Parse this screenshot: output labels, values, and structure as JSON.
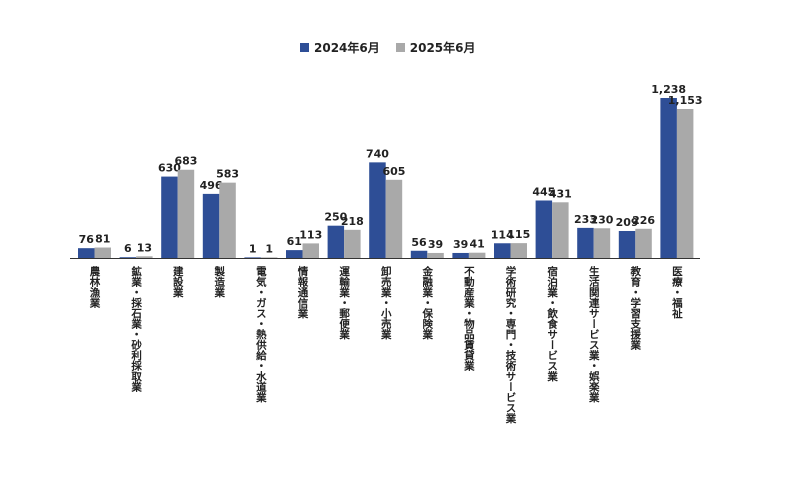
{
  "chart_data": {
    "type": "bar",
    "categories": [
      "農林漁業",
      "鉱業・採石業・砂利採取業",
      "建設業",
      "製造業",
      "電気・ガス・熱供給・水道業",
      "情報通信業",
      "運輸業・郵便業",
      "卸売業・小売業",
      "金融業・保険業",
      "不動産業・物品賃貸業",
      "学術研究・専門・技術サービス業",
      "宿泊業・飲食サービス業",
      "生活関連サービス業・娯楽業",
      "教育・学習支援業",
      "医療・福祉"
    ],
    "series": [
      {
        "name": "2024年6月",
        "color": "#2e4e96",
        "values": [
          76,
          6,
          630,
          496,
          1,
          61,
          250,
          740,
          56,
          39,
          114,
          445,
          233,
          209,
          1238
        ],
        "labels": [
          "76",
          "6",
          "630",
          "496",
          "1",
          "61",
          "250",
          "740",
          "56",
          "39",
          "114",
          "445",
          "233",
          "209",
          "1,238"
        ]
      },
      {
        "name": "2025年6月",
        "color": "#a9a9a9",
        "values": [
          81,
          13,
          683,
          583,
          1,
          113,
          218,
          605,
          39,
          41,
          115,
          431,
          230,
          226,
          1153
        ],
        "labels": [
          "81",
          "13",
          "683",
          "583",
          "1",
          "113",
          "218",
          "605",
          "39",
          "41",
          "115",
          "431",
          "230",
          "226",
          "1,153"
        ]
      }
    ],
    "ylim": [
      0,
      1238
    ],
    "grid": false,
    "legend": "top-center"
  }
}
